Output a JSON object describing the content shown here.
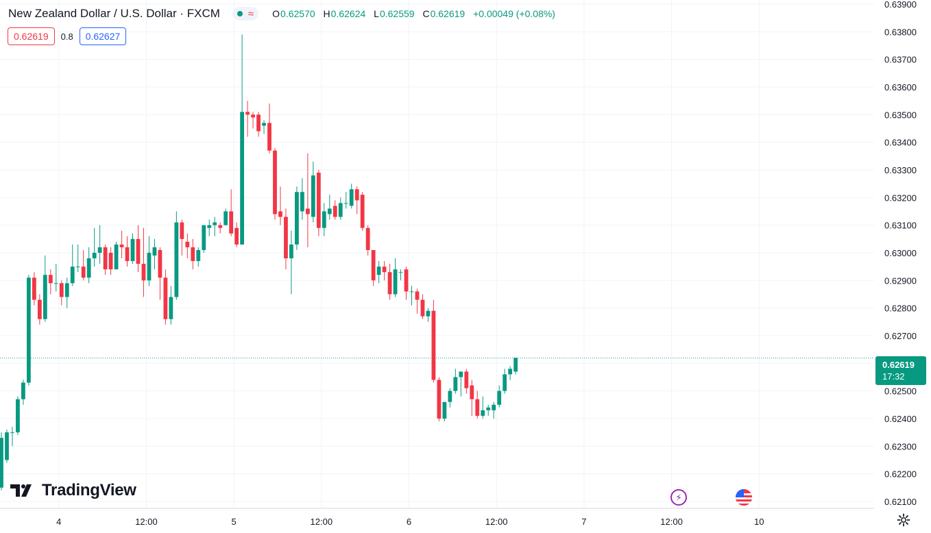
{
  "header": {
    "symbol": "New Zealand Dollar / U.S. Dollar · FXCM",
    "approx_symbol": "≈",
    "ohlc": [
      {
        "key": "O",
        "value": "0.62570"
      },
      {
        "key": "H",
        "value": "0.62624"
      },
      {
        "key": "L",
        "value": "0.62559"
      },
      {
        "key": "C",
        "value": "0.62619"
      }
    ],
    "change": "+0.00049 (+0.08%)"
  },
  "quote": {
    "bid": "0.62619",
    "spread": "0.8",
    "ask": "0.62627"
  },
  "last_price": {
    "price": "0.62619",
    "countdown": "17:32"
  },
  "logo": {
    "text": "TradingView"
  },
  "icons": {
    "flash": "flash-icon",
    "flag": "us-flag-icon",
    "settings": "gear-icon"
  },
  "colors": {
    "up": "#089981",
    "down": "#f23645",
    "grid": "#f0f3fa",
    "text": "#131722",
    "bid": "#f23645",
    "ask": "#2962ff"
  },
  "chart_data": {
    "type": "candlestick",
    "title": "New Zealand Dollar / U.S. Dollar · FXCM",
    "y_axis": {
      "position": "right",
      "range": [
        0.62075,
        0.63915
      ],
      "ticks": [
        "0.63900",
        "0.63800",
        "0.63700",
        "0.63600",
        "0.63500",
        "0.63400",
        "0.63300",
        "0.63200",
        "0.63100",
        "0.63000",
        "0.62900",
        "0.62800",
        "0.62700",
        "0.62600",
        "0.62500",
        "0.62400",
        "0.62300",
        "0.62200",
        "0.62100"
      ]
    },
    "x_axis": {
      "ticks": [
        {
          "label": "4",
          "index": 10.5
        },
        {
          "label": "12:00",
          "index": 26.5
        },
        {
          "label": "5",
          "index": 42.5
        },
        {
          "label": "12:00",
          "index": 58.5
        },
        {
          "label": "6",
          "index": 74.5
        },
        {
          "label": "12:00",
          "index": 90.5
        },
        {
          "label": "7",
          "index": 106.5
        },
        {
          "label": "12:00",
          "index": 122.5
        },
        {
          "label": "10",
          "index": 138.5
        }
      ]
    },
    "grid": true,
    "last_value_line": 0.62619,
    "candles": [
      [
        0.6215,
        0.6235,
        0.6214,
        0.6233
      ],
      [
        0.6225,
        0.6236,
        0.6224,
        0.6235
      ],
      [
        0.6235,
        0.6237,
        0.623,
        0.6235
      ],
      [
        0.6235,
        0.6248,
        0.6234,
        0.6247
      ],
      [
        0.6247,
        0.6254,
        0.6245,
        0.6253
      ],
      [
        0.6253,
        0.6292,
        0.6252,
        0.6291
      ],
      [
        0.6291,
        0.6293,
        0.6281,
        0.6283
      ],
      [
        0.6283,
        0.6285,
        0.6274,
        0.6276
      ],
      [
        0.6276,
        0.6299,
        0.6275,
        0.6292
      ],
      [
        0.6292,
        0.6294,
        0.6285,
        0.6289
      ],
      [
        0.6289,
        0.6296,
        0.6286,
        0.6289
      ],
      [
        0.6289,
        0.629,
        0.6281,
        0.6284
      ],
      [
        0.6284,
        0.6291,
        0.628,
        0.6289
      ],
      [
        0.6289,
        0.6303,
        0.6288,
        0.6295
      ],
      [
        0.6295,
        0.6303,
        0.6293,
        0.6295
      ],
      [
        0.6295,
        0.6301,
        0.629,
        0.6291
      ],
      [
        0.6291,
        0.6302,
        0.6289,
        0.6298
      ],
      [
        0.6298,
        0.6309,
        0.6295,
        0.63
      ],
      [
        0.63,
        0.631,
        0.6296,
        0.6302
      ],
      [
        0.6302,
        0.6303,
        0.6292,
        0.6294
      ],
      [
        0.63,
        0.6302,
        0.6292,
        0.6294
      ],
      [
        0.6294,
        0.6304,
        0.6294,
        0.6303
      ],
      [
        0.6303,
        0.6308,
        0.6298,
        0.6302
      ],
      [
        0.6302,
        0.6306,
        0.6295,
        0.6297
      ],
      [
        0.6297,
        0.6307,
        0.6296,
        0.6305
      ],
      [
        0.6305,
        0.631,
        0.6293,
        0.6296
      ],
      [
        0.6296,
        0.6309,
        0.6284,
        0.629
      ],
      [
        0.629,
        0.6306,
        0.6288,
        0.63
      ],
      [
        0.6299,
        0.6305,
        0.6294,
        0.6302
      ],
      [
        0.6301,
        0.6302,
        0.6283,
        0.6291
      ],
      [
        0.6291,
        0.6294,
        0.6274,
        0.6276
      ],
      [
        0.6276,
        0.6288,
        0.6274,
        0.6284
      ],
      [
        0.6284,
        0.6315,
        0.6283,
        0.6311
      ],
      [
        0.6311,
        0.6312,
        0.6299,
        0.6305
      ],
      [
        0.6304,
        0.6307,
        0.6298,
        0.6302
      ],
      [
        0.6302,
        0.6305,
        0.6294,
        0.6297
      ],
      [
        0.6297,
        0.6302,
        0.6295,
        0.6301
      ],
      [
        0.6301,
        0.631,
        0.63,
        0.631
      ],
      [
        0.6309,
        0.6312,
        0.6306,
        0.631
      ],
      [
        0.631,
        0.6313,
        0.6306,
        0.6311
      ],
      [
        0.631,
        0.6311,
        0.6307,
        0.6309
      ],
      [
        0.631,
        0.6316,
        0.631,
        0.6315
      ],
      [
        0.6315,
        0.6323,
        0.6306,
        0.6307
      ],
      [
        0.6309,
        0.6311,
        0.6302,
        0.6303
      ],
      [
        0.6303,
        0.6379,
        0.6303,
        0.6351
      ],
      [
        0.6351,
        0.6355,
        0.6342,
        0.635
      ],
      [
        0.635,
        0.6351,
        0.6345,
        0.6349
      ],
      [
        0.635,
        0.6351,
        0.6342,
        0.6344
      ],
      [
        0.6346,
        0.6348,
        0.6343,
        0.6347
      ],
      [
        0.6347,
        0.6354,
        0.6336,
        0.6337
      ],
      [
        0.6337,
        0.6338,
        0.6312,
        0.6314
      ],
      [
        0.6315,
        0.6324,
        0.631,
        0.6313
      ],
      [
        0.6313,
        0.6316,
        0.6294,
        0.6298
      ],
      [
        0.6298,
        0.6308,
        0.6285,
        0.6303
      ],
      [
        0.6303,
        0.6324,
        0.6301,
        0.6322
      ],
      [
        0.6315,
        0.6327,
        0.6312,
        0.6322
      ],
      [
        0.6316,
        0.6336,
        0.6302,
        0.6314
      ],
      [
        0.6313,
        0.6333,
        0.6311,
        0.6328
      ],
      [
        0.6329,
        0.633,
        0.6306,
        0.6309
      ],
      [
        0.6309,
        0.6318,
        0.6306,
        0.6315
      ],
      [
        0.6314,
        0.6321,
        0.6312,
        0.6316
      ],
      [
        0.6317,
        0.6319,
        0.6312,
        0.6313
      ],
      [
        0.6313,
        0.632,
        0.6312,
        0.6318
      ],
      [
        0.6318,
        0.6322,
        0.6316,
        0.6318
      ],
      [
        0.6317,
        0.6325,
        0.6316,
        0.6323
      ],
      [
        0.6323,
        0.6324,
        0.6314,
        0.6319
      ],
      [
        0.6321,
        0.6322,
        0.6308,
        0.6309
      ],
      [
        0.6309,
        0.631,
        0.6299,
        0.6301
      ],
      [
        0.6301,
        0.63,
        0.6288,
        0.629
      ],
      [
        0.6292,
        0.6297,
        0.6289,
        0.6295
      ],
      [
        0.6295,
        0.6297,
        0.629,
        0.6293
      ],
      [
        0.6293,
        0.6296,
        0.6283,
        0.6285
      ],
      [
        0.6285,
        0.6298,
        0.6284,
        0.6294
      ],
      [
        0.6293,
        0.6294,
        0.629,
        0.6293
      ],
      [
        0.6294,
        0.6295,
        0.6283,
        0.6286
      ],
      [
        0.6286,
        0.6288,
        0.6281,
        0.6286
      ],
      [
        0.6286,
        0.6287,
        0.6278,
        0.6283
      ],
      [
        0.6283,
        0.6285,
        0.6276,
        0.6277
      ],
      [
        0.6277,
        0.628,
        0.6275,
        0.6279
      ],
      [
        0.6279,
        0.6283,
        0.6253,
        0.6254
      ],
      [
        0.6254,
        0.6255,
        0.6239,
        0.624
      ],
      [
        0.624,
        0.6245,
        0.6239,
        0.6246
      ],
      [
        0.6246,
        0.6251,
        0.6244,
        0.625
      ],
      [
        0.625,
        0.6258,
        0.6249,
        0.6255
      ],
      [
        0.6255,
        0.6257,
        0.6248,
        0.6257
      ],
      [
        0.6257,
        0.6258,
        0.6249,
        0.6251
      ],
      [
        0.6252,
        0.6254,
        0.6241,
        0.6247
      ],
      [
        0.6247,
        0.625,
        0.624,
        0.6241
      ],
      [
        0.6241,
        0.6248,
        0.624,
        0.6243
      ],
      [
        0.6243,
        0.6245,
        0.6241,
        0.6244
      ],
      [
        0.6243,
        0.6246,
        0.624,
        0.6245
      ],
      [
        0.6245,
        0.6252,
        0.6244,
        0.625
      ],
      [
        0.625,
        0.6258,
        0.6249,
        0.6256
      ],
      [
        0.6256,
        0.6259,
        0.6254,
        0.6258
      ],
      [
        0.6257,
        0.6262,
        0.6256,
        0.6262
      ]
    ]
  }
}
